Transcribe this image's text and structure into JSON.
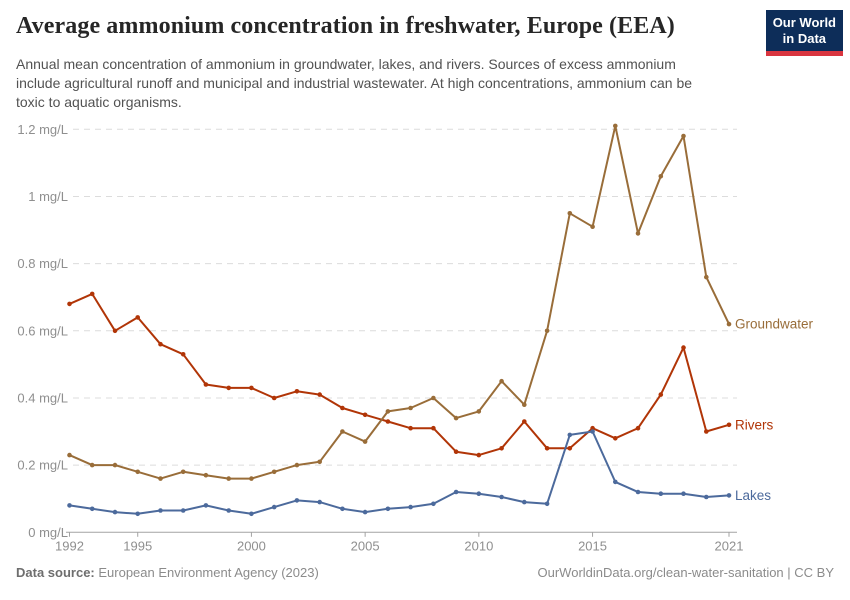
{
  "header": {
    "title": "Average ammonium concentration in freshwater, Europe (EEA)",
    "subtitle": "Annual mean concentration of ammonium in groundwater, lakes, and rivers. Sources of excess ammonium include agricultural runoff and municipal and industrial wastewater. At high concentrations, ammonium can be toxic to aquatic organisms."
  },
  "logo": {
    "line1": "Our World",
    "line2": "in Data",
    "bg_color": "#0d2d59",
    "accent_color": "#d9353f"
  },
  "footer": {
    "source_label": "Data source:",
    "source_text": " European Environment Agency (2023)",
    "credit_text": "OurWorldinData.org/clean-water-sanitation | CC BY"
  },
  "chart_data": {
    "type": "line",
    "title": "Average ammonium concentration in freshwater, Europe (EEA)",
    "unit": "mg/L",
    "xlabel": "",
    "ylabel": "mg/L",
    "ylim": [
      0,
      1.2
    ],
    "grid": "horizontal-dashed",
    "legend_position": "line-end-labels-right",
    "x": [
      1992,
      1993,
      1994,
      1995,
      1996,
      1997,
      1998,
      1999,
      2000,
      2001,
      2002,
      2003,
      2004,
      2005,
      2006,
      2007,
      2008,
      2009,
      2010,
      2011,
      2012,
      2013,
      2014,
      2015,
      2016,
      2017,
      2018,
      2019,
      2020,
      2021
    ],
    "x_tick_years": [
      1992,
      1995,
      2000,
      2005,
      2010,
      2015,
      2021
    ],
    "y_ticks": [
      {
        "value": 0,
        "label": "0 mg/L"
      },
      {
        "value": 0.2,
        "label": "0.2 mg/L"
      },
      {
        "value": 0.4,
        "label": "0.4 mg/L"
      },
      {
        "value": 0.6,
        "label": "0.6 mg/L"
      },
      {
        "value": 0.8,
        "label": "0.8 mg/L"
      },
      {
        "value": 1,
        "label": "1 mg/L"
      },
      {
        "value": 1.2,
        "label": "1.2 mg/L"
      }
    ],
    "series": [
      {
        "name": "Rivers",
        "color": "#B13507",
        "values": [
          0.68,
          0.71,
          0.6,
          0.64,
          0.56,
          0.53,
          0.44,
          0.43,
          0.43,
          0.4,
          0.42,
          0.41,
          0.37,
          0.35,
          0.33,
          0.31,
          0.31,
          0.24,
          0.23,
          0.25,
          0.33,
          0.25,
          0.25,
          0.31,
          0.28,
          0.31,
          0.41,
          0.55,
          0.3,
          0.32
        ]
      },
      {
        "name": "Groundwater",
        "color": "#996D39",
        "values": [
          0.23,
          0.2,
          0.2,
          0.18,
          0.16,
          0.18,
          0.17,
          0.16,
          0.16,
          0.18,
          0.2,
          0.21,
          0.3,
          0.27,
          0.36,
          0.37,
          0.4,
          0.34,
          0.36,
          0.45,
          0.38,
          0.6,
          0.95,
          0.91,
          1.21,
          0.89,
          1.06,
          1.18,
          0.76,
          0.62
        ]
      },
      {
        "name": "Lakes",
        "color": "#4C6A9C",
        "values": [
          0.08,
          0.07,
          0.06,
          0.055,
          0.065,
          0.065,
          0.08,
          0.065,
          0.055,
          0.075,
          0.095,
          0.09,
          0.07,
          0.06,
          0.07,
          0.075,
          0.085,
          0.12,
          0.115,
          0.105,
          0.09,
          0.085,
          0.29,
          0.3,
          0.15,
          0.12,
          0.115,
          0.115,
          0.105,
          0.11
        ]
      }
    ]
  }
}
